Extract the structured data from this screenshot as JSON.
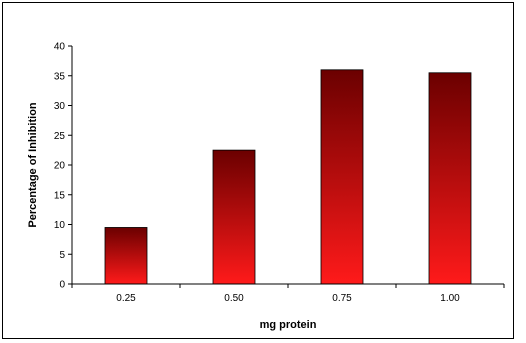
{
  "chart_data": {
    "type": "bar",
    "categories": [
      "0.25",
      "0.50",
      "0.75",
      "1.00"
    ],
    "values": [
      9.5,
      22.5,
      36,
      35.5
    ],
    "title": "",
    "xlabel": "mg protein",
    "ylabel": "Percentage of Inhibition",
    "ylim": [
      0,
      40
    ],
    "yticks": [
      "0",
      "5",
      "10",
      "15",
      "20",
      "25",
      "30",
      "35",
      "40"
    ],
    "grid": false,
    "legend": "none",
    "bar_gradient": {
      "top": "#6b0000",
      "bottom": "#ff1a1a"
    }
  }
}
